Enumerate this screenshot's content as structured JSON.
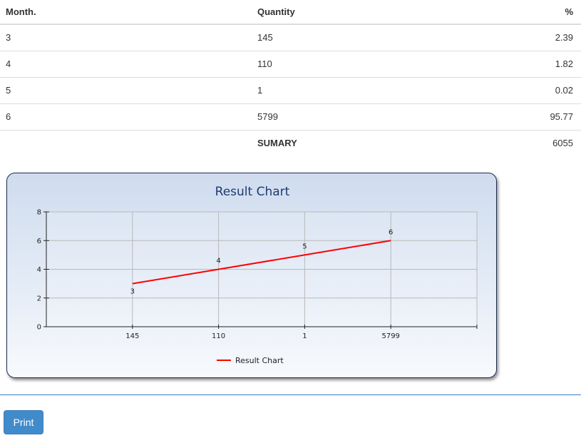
{
  "table": {
    "headers": [
      "Month.",
      "Quantity",
      "%"
    ],
    "rows": [
      {
        "month": "3",
        "quantity": "145",
        "percent": "2.39"
      },
      {
        "month": "4",
        "quantity": "110",
        "percent": "1.82"
      },
      {
        "month": "5",
        "quantity": "1",
        "percent": "0.02"
      },
      {
        "month": "6",
        "quantity": "5799",
        "percent": "95.77"
      }
    ],
    "summary": {
      "label": "SUMARY",
      "value": "6055"
    }
  },
  "chart_data": {
    "type": "line",
    "title": "Result Chart",
    "categories": [
      "145",
      "110",
      "1",
      "5799"
    ],
    "series": [
      {
        "name": "Result Chart",
        "values": [
          3,
          4,
          5,
          6
        ],
        "color": "#ff0000"
      }
    ],
    "point_labels": [
      "3",
      "4",
      "5",
      "6"
    ],
    "y_ticks": [
      "0",
      "2",
      "4",
      "6",
      "8"
    ],
    "ylim": [
      0,
      8
    ],
    "grid": true,
    "legend": "bottom-center"
  },
  "actions": {
    "print_label": "Print"
  },
  "colors": {
    "accent": "#428bca",
    "divider": "#3a7bbf",
    "line": "#ff0000"
  }
}
